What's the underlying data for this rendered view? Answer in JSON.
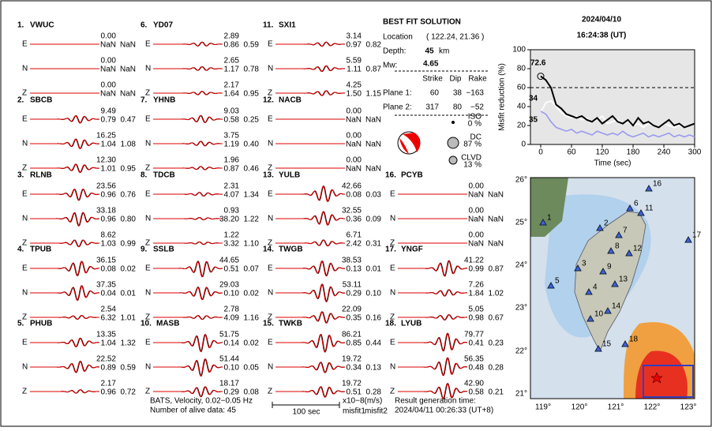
{
  "stations": [
    {
      "num": "1.",
      "name": "VWUC",
      "traces": [
        {
          "comp": "E",
          "amp": "0.00",
          "m1": "NaN",
          "m2": "NaN"
        },
        {
          "comp": "N",
          "amp": "0.00",
          "m1": "NaN",
          "m2": "NaN"
        },
        {
          "comp": "Z",
          "amp": "0.00",
          "m1": "NaN",
          "m2": "NaN"
        }
      ]
    },
    {
      "num": "2.",
      "name": "SBCB",
      "traces": [
        {
          "comp": "E",
          "amp": "9.49",
          "m1": "0.79",
          "m2": "0.47"
        },
        {
          "comp": "N",
          "amp": "16.25",
          "m1": "1.04",
          "m2": "1.08"
        },
        {
          "comp": "Z",
          "amp": "12.30",
          "m1": "1.01",
          "m2": "0.95"
        }
      ]
    },
    {
      "num": "3.",
      "name": "RLNB",
      "traces": [
        {
          "comp": "E",
          "amp": "23.56",
          "m1": "0.96",
          "m2": "0.76"
        },
        {
          "comp": "N",
          "amp": "33.18",
          "m1": "0.96",
          "m2": "0.80"
        },
        {
          "comp": "Z",
          "amp": "8.62",
          "m1": "1.03",
          "m2": "0.99"
        }
      ]
    },
    {
      "num": "4.",
      "name": "TPUB",
      "traces": [
        {
          "comp": "E",
          "amp": "36.15",
          "m1": "0.08",
          "m2": "0.02"
        },
        {
          "comp": "N",
          "amp": "37.35",
          "m1": "0.04",
          "m2": "0.01"
        },
        {
          "comp": "Z",
          "amp": "2.54",
          "m1": "6.32",
          "m2": "1.01"
        }
      ]
    },
    {
      "num": "5.",
      "name": "PHUB",
      "traces": [
        {
          "comp": "E",
          "amp": "13.35",
          "m1": "1.04",
          "m2": "1.32"
        },
        {
          "comp": "N",
          "amp": "22.52",
          "m1": "0.89",
          "m2": "0.59"
        },
        {
          "comp": "Z",
          "amp": "2.17",
          "m1": "0.96",
          "m2": "0.72"
        }
      ]
    },
    {
      "num": "6.",
      "name": "YD07",
      "traces": [
        {
          "comp": "E",
          "amp": "2.89",
          "m1": "0.86",
          "m2": "0.59"
        },
        {
          "comp": "N",
          "amp": "2.65",
          "m1": "1.17",
          "m2": "0.78"
        },
        {
          "comp": "Z",
          "amp": "2.17",
          "m1": "1.64",
          "m2": "0.95"
        }
      ]
    },
    {
      "num": "7.",
      "name": "YHNB",
      "traces": [
        {
          "comp": "E",
          "amp": "9.03",
          "m1": "0.58",
          "m2": "0.25"
        },
        {
          "comp": "N",
          "amp": "3.75",
          "m1": "1.19",
          "m2": "0.40"
        },
        {
          "comp": "Z",
          "amp": "1.96",
          "m1": "0.87",
          "m2": "0.46"
        }
      ]
    },
    {
      "num": "8.",
      "name": "TDCB",
      "traces": [
        {
          "comp": "E",
          "amp": "2.31",
          "m1": "4.07",
          "m2": "1.34"
        },
        {
          "comp": "N",
          "amp": "0.93",
          "m1": "38.20",
          "m2": "1.22"
        },
        {
          "comp": "Z",
          "amp": "1.22",
          "m1": "3.32",
          "m2": "1.10"
        }
      ]
    },
    {
      "num": "9.",
      "name": "SSLB",
      "traces": [
        {
          "comp": "E",
          "amp": "44.65",
          "m1": "0.51",
          "m2": "0.07"
        },
        {
          "comp": "N",
          "amp": "29.03",
          "m1": "0.10",
          "m2": "0.02"
        },
        {
          "comp": "Z",
          "amp": "2.78",
          "m1": "4.09",
          "m2": "1.16"
        }
      ]
    },
    {
      "num": "10.",
      "name": "MASB",
      "traces": [
        {
          "comp": "E",
          "amp": "51.75",
          "m1": "0.14",
          "m2": "0.02"
        },
        {
          "comp": "N",
          "amp": "51.44",
          "m1": "0.10",
          "m2": "0.05"
        },
        {
          "comp": "Z",
          "amp": "18.17",
          "m1": "0.29",
          "m2": "0.08"
        }
      ]
    },
    {
      "num": "11.",
      "name": "SXI1",
      "traces": [
        {
          "comp": "E",
          "amp": "3.14",
          "m1": "0.97",
          "m2": "0.82"
        },
        {
          "comp": "N",
          "amp": "5.59",
          "m1": "1.11",
          "m2": "0.87"
        },
        {
          "comp": "Z",
          "amp": "4.25",
          "m1": "1.50",
          "m2": "1.15"
        }
      ]
    },
    {
      "num": "12.",
      "name": "NACB",
      "traces": [
        {
          "comp": "E",
          "amp": "0.00",
          "m1": "NaN",
          "m2": "NaN"
        },
        {
          "comp": "N",
          "amp": "0.00",
          "m1": "NaN",
          "m2": "NaN"
        },
        {
          "comp": "Z",
          "amp": "0.00",
          "m1": "NaN",
          "m2": "NaN"
        }
      ]
    },
    {
      "num": "13.",
      "name": "YULB",
      "traces": [
        {
          "comp": "E",
          "amp": "42.66",
          "m1": "0.08",
          "m2": "0.03"
        },
        {
          "comp": "N",
          "amp": "32.55",
          "m1": "0.36",
          "m2": "0.09"
        },
        {
          "comp": "Z",
          "amp": "6.71",
          "m1": "2.42",
          "m2": "0.31"
        }
      ]
    },
    {
      "num": "14.",
      "name": "TWGB",
      "traces": [
        {
          "comp": "E",
          "amp": "38.53",
          "m1": "0.13",
          "m2": "0.01"
        },
        {
          "comp": "N",
          "amp": "53.11",
          "m1": "0.29",
          "m2": "0.10"
        },
        {
          "comp": "Z",
          "amp": "22.09",
          "m1": "0.35",
          "m2": "0.16"
        }
      ]
    },
    {
      "num": "15.",
      "name": "TWKB",
      "traces": [
        {
          "comp": "E",
          "amp": "86.21",
          "m1": "0.85",
          "m2": "0.44"
        },
        {
          "comp": "N",
          "amp": "19.72",
          "m1": "0.34",
          "m2": "0.13"
        },
        {
          "comp": "Z",
          "amp": "19.72",
          "m1": "0.51",
          "m2": "0.28"
        }
      ]
    },
    {
      "num": "16.",
      "name": "PCYB",
      "traces": [
        {
          "comp": "E",
          "amp": "0.00",
          "m1": "NaN",
          "m2": "NaN"
        },
        {
          "comp": "N",
          "amp": "0.00",
          "m1": "NaN",
          "m2": "NaN"
        },
        {
          "comp": "Z",
          "amp": "0.00",
          "m1": "NaN",
          "m2": "NaN"
        }
      ]
    },
    {
      "num": "17.",
      "name": "YNGF",
      "traces": [
        {
          "comp": "E",
          "amp": "41.22",
          "m1": "0.99",
          "m2": "0.87"
        },
        {
          "comp": "N",
          "amp": "7.26",
          "m1": "1.84",
          "m2": "1.02"
        },
        {
          "comp": "Z",
          "amp": "5.05",
          "m1": "0.98",
          "m2": "0.67"
        }
      ]
    },
    {
      "num": "18.",
      "name": "LYUB",
      "traces": [
        {
          "comp": "E",
          "amp": "79.77",
          "m1": "0.41",
          "m2": "0.23"
        },
        {
          "comp": "N",
          "amp": "56.35",
          "m1": "0.48",
          "m2": "0.28"
        },
        {
          "comp": "Z",
          "amp": "42.90",
          "m1": "0.58",
          "m2": "0.21"
        }
      ]
    }
  ],
  "solution": {
    "title": "BEST FIT SOLUTION",
    "location_label": "Location",
    "location": "( 122.24, 21.36 )",
    "depth_label": "Depth:",
    "depth": "45",
    "depth_unit": "km",
    "mw_label": "Mw:",
    "mw": "4.65",
    "header": [
      "Strike",
      "Dip",
      "Rake"
    ],
    "planes": [
      {
        "label": "Plane 1:",
        "values": [
          "60",
          "38",
          "−163"
        ]
      },
      {
        "label": "Plane 2:",
        "values": [
          "317",
          "80",
          "−52"
        ]
      }
    ],
    "components": [
      {
        "name": "ISO",
        "pct": "0 %"
      },
      {
        "name": "DC",
        "pct": "87 %"
      },
      {
        "name": "CLVD",
        "pct": "13 %"
      }
    ]
  },
  "date": "2024/04/10",
  "time": "16:24:38  (UT)",
  "chart_data": {
    "type": "line",
    "xlabel": "Time (sec)",
    "ylabel": "Misfit reduction (%)",
    "xlim": [
      -20,
      300
    ],
    "ylim": [
      0,
      100
    ],
    "xticks": [
      0,
      60,
      120,
      180,
      240,
      300
    ],
    "yticks": [
      0,
      20,
      40,
      60,
      80,
      100
    ],
    "reference_line": 60,
    "x": [
      0,
      10,
      20,
      30,
      40,
      50,
      60,
      70,
      80,
      90,
      100,
      110,
      120,
      130,
      140,
      150,
      160,
      170,
      180,
      190,
      200,
      210,
      220,
      230,
      240,
      250,
      260,
      270,
      280,
      290,
      300
    ],
    "series": [
      {
        "color": "#ffffff",
        "values": [
          34,
          44,
          46,
          40,
          34,
          30,
          28,
          30,
          26,
          28,
          24,
          26,
          30,
          22,
          24,
          26,
          22,
          24,
          20,
          22,
          18,
          22,
          20,
          18,
          22,
          20,
          18,
          20,
          18,
          20,
          22
        ]
      },
      {
        "color": "#9a9af0",
        "values": [
          35,
          32,
          24,
          18,
          16,
          14,
          16,
          12,
          14,
          12,
          10,
          14,
          12,
          10,
          12,
          10,
          14,
          10,
          8,
          10,
          12,
          8,
          10,
          8,
          10,
          12,
          8,
          10,
          8,
          10,
          8
        ]
      },
      {
        "color": "#000000",
        "values": [
          72,
          68,
          60,
          42,
          38,
          32,
          30,
          28,
          30,
          26,
          24,
          28,
          22,
          26,
          30,
          24,
          22,
          26,
          20,
          28,
          22,
          24,
          20,
          18,
          22,
          26,
          20,
          22,
          18,
          20,
          22
        ]
      }
    ],
    "annotations": [
      "72.6",
      "34",
      "35"
    ]
  },
  "map": {
    "lon_labels": [
      "119°",
      "120°",
      "121°",
      "122°",
      "123°"
    ],
    "lat_labels": [
      "26°",
      "25°",
      "24°",
      "23°",
      "22°",
      "21°"
    ],
    "station_labels": [
      "1",
      "2",
      "3",
      "4",
      "5",
      "6",
      "7",
      "8",
      "9",
      "10",
      "11",
      "12",
      "13",
      "14",
      "15",
      "16",
      "17",
      "18"
    ]
  },
  "footer": {
    "filter": "BATS, Velocity, 0.02−0.05 Hz",
    "alive": "Number of alive data: 45",
    "scale": "100 sec",
    "unit": "x10−8(m/s)",
    "misfit1": "misfit1",
    "misfit2": "misfit2",
    "result_label": "Result generation time:",
    "result_time": "2024/04/11 00:26:33 (UT+8)"
  }
}
